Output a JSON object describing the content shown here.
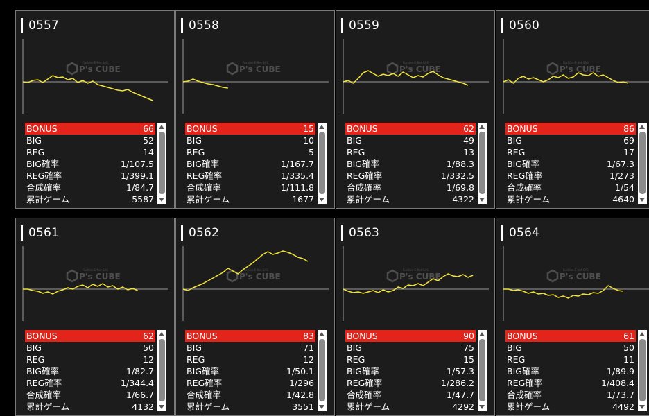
{
  "labels": {
    "bonus": "BONUS",
    "big": "BIG",
    "reg": "REG",
    "big_rate": "BIG確率",
    "reg_rate": "REG確率",
    "combined_rate": "合成確率",
    "total_games": "累計ゲーム"
  },
  "colors": {
    "accent_red": "#e3241b",
    "line_yellow": "#f2e23a",
    "panel_bg": "#1c1c1c"
  },
  "watermark": {
    "brand": "P's CUBE",
    "sub": "Fushiko-E-Net-SAS"
  },
  "machines": [
    {
      "id": "0557",
      "bonus": "66",
      "big": "52",
      "reg": "14",
      "big_rate": "1/107.5",
      "reg_rate": "1/399.1",
      "combined_rate": "1/84.7",
      "total_games": "5587",
      "trend": [
        0,
        -1,
        2,
        3,
        -1,
        4,
        9,
        6,
        7,
        3,
        5,
        -1,
        2,
        -2,
        1,
        -4,
        -6,
        -8,
        -10,
        -12,
        -13,
        -11,
        -15,
        -18,
        -21,
        -24,
        -27
      ]
    },
    {
      "id": "0558",
      "bonus": "15",
      "big": "10",
      "reg": "5",
      "big_rate": "1/167.7",
      "reg_rate": "1/335.4",
      "combined_rate": "1/111.8",
      "total_games": "1677",
      "trend": [
        0,
        1,
        4,
        1,
        -1,
        -3,
        -4,
        -6,
        -8,
        -9
      ]
    },
    {
      "id": "0559",
      "bonus": "62",
      "big": "49",
      "reg": "13",
      "big_rate": "1/88.3",
      "reg_rate": "1/332.5",
      "combined_rate": "1/69.8",
      "total_games": "4322",
      "trend": [
        0,
        2,
        -2,
        5,
        13,
        16,
        12,
        8,
        11,
        9,
        12,
        8,
        14,
        10,
        6,
        9,
        7,
        12,
        15,
        10,
        6,
        4,
        2,
        0,
        -2,
        -5
      ]
    },
    {
      "id": "0560",
      "bonus": "86",
      "big": "69",
      "reg": "17",
      "big_rate": "1/67.3",
      "reg_rate": "1/273",
      "combined_rate": "1/54",
      "total_games": "4640",
      "trend": [
        0,
        3,
        -2,
        5,
        8,
        4,
        6,
        3,
        0,
        3,
        8,
        6,
        10,
        5,
        7,
        13,
        10,
        9,
        13,
        8,
        10,
        6,
        2,
        -1,
        0,
        -2
      ]
    },
    {
      "id": "0561",
      "bonus": "62",
      "big": "50",
      "reg": "12",
      "big_rate": "1/82.7",
      "reg_rate": "1/344.4",
      "combined_rate": "1/66.7",
      "total_games": "4132",
      "trend": [
        0,
        0,
        -2,
        -3,
        -6,
        -4,
        -7,
        -3,
        -1,
        2,
        0,
        4,
        6,
        2,
        7,
        4,
        8,
        3,
        5,
        0,
        3,
        -1,
        1,
        -2
      ]
    },
    {
      "id": "0562",
      "bonus": "83",
      "big": "71",
      "reg": "12",
      "big_rate": "1/50.1",
      "reg_rate": "1/296",
      "combined_rate": "1/42.8",
      "total_games": "3551",
      "trend": [
        0,
        -2,
        2,
        5,
        8,
        12,
        16,
        20,
        24,
        30,
        26,
        22,
        28,
        33,
        38,
        44,
        50,
        54,
        50,
        52,
        55,
        53,
        50,
        46,
        44,
        40
      ]
    },
    {
      "id": "0563",
      "bonus": "90",
      "big": "75",
      "reg": "15",
      "big_rate": "1/57.3",
      "reg_rate": "1/286.2",
      "combined_rate": "1/47.7",
      "total_games": "4292",
      "trend": [
        0,
        -3,
        -5,
        -4,
        -6,
        -4,
        -2,
        -5,
        -1,
        -4,
        -2,
        3,
        1,
        6,
        5,
        8,
        5,
        10,
        15,
        12,
        18,
        22,
        19,
        18,
        21,
        17,
        20
      ]
    },
    {
      "id": "0564",
      "bonus": "61",
      "big": "50",
      "reg": "11",
      "big_rate": "1/89.9",
      "reg_rate": "1/408.4",
      "combined_rate": "1/73.7",
      "total_games": "4492",
      "trend": [
        0,
        0,
        -2,
        -1,
        -3,
        -6,
        -4,
        -7,
        -6,
        -9,
        -8,
        -12,
        -10,
        -13,
        -9,
        -10,
        -7,
        -8,
        -5,
        -6,
        -2,
        5,
        1,
        -2,
        -3
      ]
    }
  ]
}
